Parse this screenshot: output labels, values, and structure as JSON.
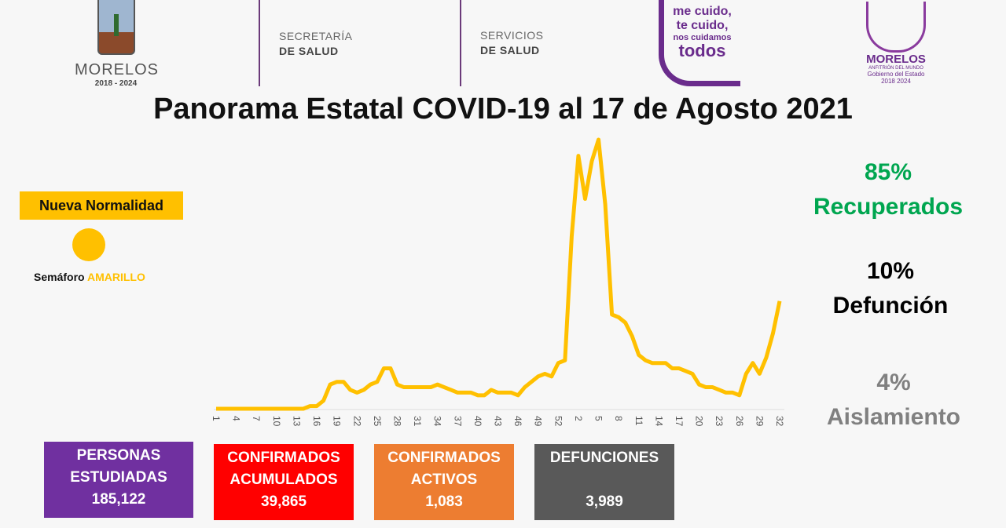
{
  "header": {
    "logo_morelos": {
      "name": "MORELOS",
      "years": "2018 - 2024"
    },
    "secretaria": {
      "line1": "SECRETARÍA",
      "line2": "DE SALUD"
    },
    "servicios": {
      "line1": "SERVICIOS",
      "line2": "DE SALUD"
    },
    "campaign": {
      "line1": "me cuido,",
      "line2": "te cuido,",
      "line3": "nos cuidamos",
      "line4": "todos"
    },
    "gobierno": {
      "name": "MORELOS",
      "tagline": "ANFITRIÓN DEL MUNDO",
      "line": "Gobierno del Estado",
      "years": "2018 2024"
    },
    "title": "Panorama Estatal COVID-19 al 17 de Agosto 2021"
  },
  "semaforo": {
    "badge": "Nueva Normalidad",
    "label": "Semáforo",
    "status": "AMARILLO",
    "color": "#ffc000"
  },
  "stats": {
    "recuperados": {
      "pct": "85%",
      "label": "Recuperados",
      "color": "#00a650"
    },
    "defuncion": {
      "pct": "10%",
      "label": "Defunción",
      "color": "#000000"
    },
    "aislamiento": {
      "pct": "4%",
      "label": "Aislamiento",
      "color": "#808080"
    }
  },
  "boxes": [
    {
      "label1": "PERSONAS",
      "label2": "ESTUDIADAS",
      "value": "185,122",
      "color": "#7030a0"
    },
    {
      "label1": "CONFIRMADOS",
      "label2": "ACUMULADOS",
      "value": "39,865",
      "color": "#ff0000"
    },
    {
      "label1": "CONFIRMADOS",
      "label2": "ACTIVOS",
      "value": "1,083",
      "color": "#ed7d31"
    },
    {
      "label1": "DEFUNCIONES",
      "label2": "",
      "value": "3,989",
      "color": "#595959"
    }
  ],
  "chart_data": {
    "type": "line",
    "line_color": "#ffc000",
    "grid": false,
    "y_axis_shown": false,
    "tick_labels": [
      "1",
      "4",
      "7",
      "10",
      "13",
      "16",
      "19",
      "22",
      "25",
      "28",
      "31",
      "34",
      "37",
      "40",
      "43",
      "46",
      "49",
      "52",
      "2",
      "5",
      "8",
      "11",
      "14",
      "17",
      "20",
      "23",
      "26",
      "29",
      "32"
    ],
    "x": [
      "1",
      "2",
      "3",
      "4",
      "5",
      "6",
      "7",
      "8",
      "9",
      "10",
      "11",
      "12",
      "13",
      "14",
      "15",
      "16",
      "17",
      "18",
      "19",
      "20",
      "21",
      "22",
      "23",
      "24",
      "25",
      "26",
      "27",
      "28",
      "29",
      "30",
      "31",
      "32",
      "33",
      "34",
      "35",
      "36",
      "37",
      "38",
      "39",
      "40",
      "41",
      "42",
      "43",
      "44",
      "45",
      "46",
      "47",
      "48",
      "49",
      "50",
      "51",
      "52",
      "53",
      "1",
      "2",
      "3",
      "4",
      "5",
      "6",
      "7",
      "8",
      "9",
      "10",
      "11",
      "12",
      "13",
      "14",
      "15",
      "16",
      "17",
      "18",
      "19",
      "20",
      "21",
      "22",
      "23",
      "24",
      "25",
      "26",
      "27",
      "28",
      "29",
      "30",
      "31",
      "32"
    ],
    "values": [
      0,
      0,
      0,
      0,
      0,
      0,
      0,
      0,
      0,
      0,
      0,
      0,
      0,
      0,
      1,
      1,
      3,
      9,
      10,
      10,
      7,
      6,
      7,
      9,
      10,
      15,
      15,
      9,
      8,
      8,
      8,
      8,
      8,
      9,
      8,
      7,
      6,
      6,
      6,
      5,
      5,
      7,
      6,
      6,
      6,
      5,
      8,
      10,
      12,
      13,
      12,
      17,
      18,
      64,
      94,
      78,
      92,
      100,
      76,
      35,
      34,
      32,
      27,
      20,
      18,
      17,
      17,
      17,
      15,
      15,
      14,
      13,
      9,
      8,
      8,
      7,
      6,
      6,
      5,
      13,
      17,
      13,
      19,
      28,
      40
    ]
  }
}
